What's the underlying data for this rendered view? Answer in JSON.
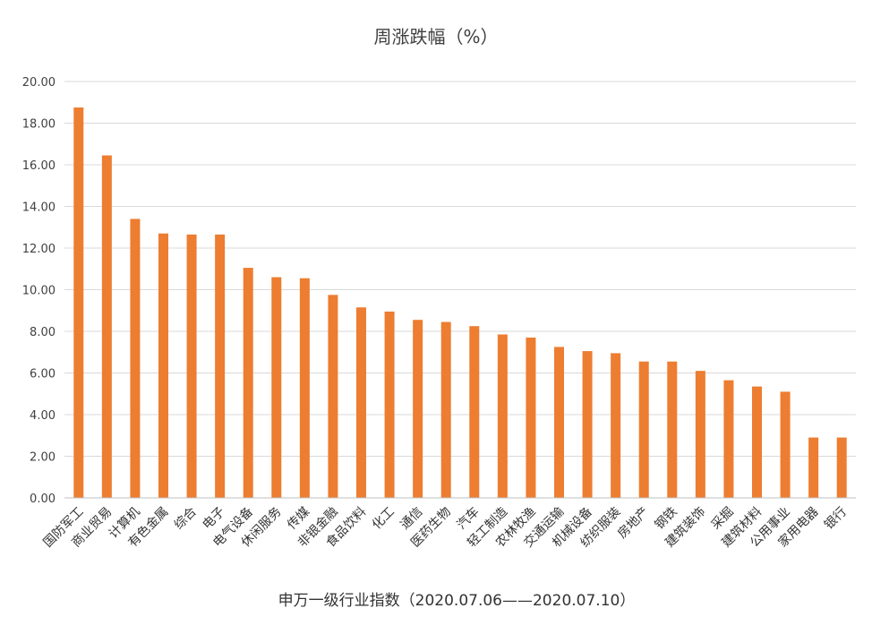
{
  "chart_data": {
    "type": "bar",
    "title": "周涨跌幅（%）",
    "xlabel": "申万一级行业指数（2020.07.06——2020.07.10）",
    "ylabel": "",
    "ylim": [
      0,
      20
    ],
    "yticks": [
      "0.00",
      "2.00",
      "4.00",
      "6.00",
      "8.00",
      "10.00",
      "12.00",
      "14.00",
      "16.00",
      "18.00",
      "20.00"
    ],
    "grid": true,
    "legend": "none",
    "bar_color": "#ED7D31",
    "categories": [
      "国防军工",
      "商业贸易",
      "计算机",
      "有色金属",
      "综合",
      "电子",
      "电气设备",
      "休闲服务",
      "传媒",
      "非银金融",
      "食品饮料",
      "化工",
      "通信",
      "医药生物",
      "汽车",
      "轻工制造",
      "农林牧渔",
      "交通运输",
      "机械设备",
      "纺织服装",
      "房地产",
      "钢铁",
      "建筑装饰",
      "采掘",
      "建筑材料",
      "公用事业",
      "家用电器",
      "银行"
    ],
    "values": [
      18.75,
      16.45,
      13.4,
      12.7,
      12.65,
      12.65,
      11.05,
      10.6,
      10.55,
      9.75,
      9.15,
      8.95,
      8.55,
      8.45,
      8.25,
      7.85,
      7.7,
      7.25,
      7.05,
      6.95,
      6.55,
      6.55,
      6.1,
      5.65,
      5.35,
      5.1,
      2.9,
      2.9
    ]
  }
}
